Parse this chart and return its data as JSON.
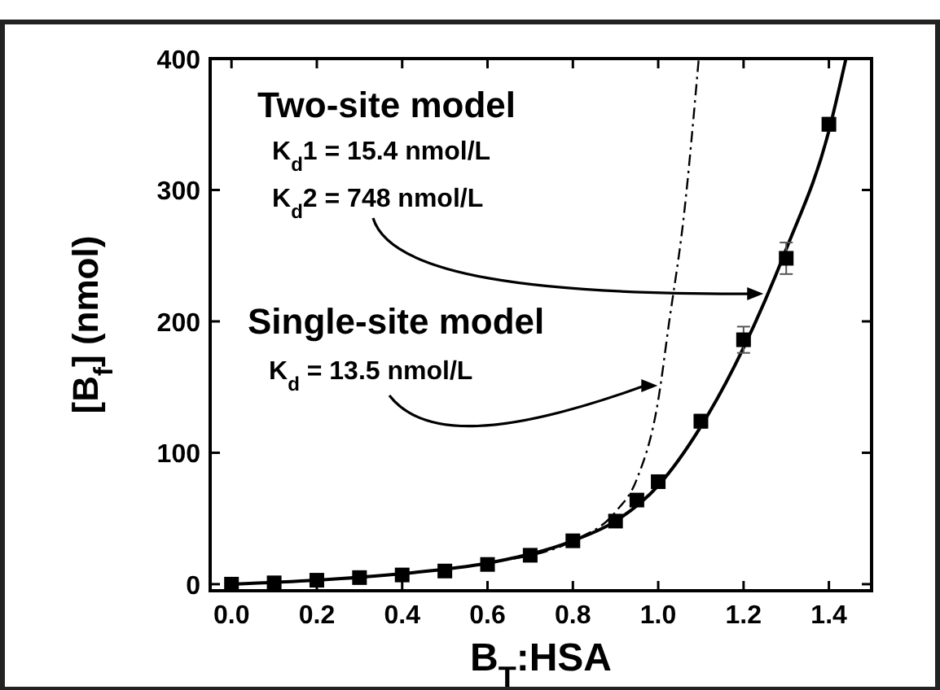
{
  "chart_data": {
    "type": "scatter",
    "xlabel": "B$_{T}$:HSA",
    "ylabel": "[B$_{f}$] (nmol)",
    "xlim": [
      -0.05,
      1.5
    ],
    "ylim": [
      -5,
      400
    ],
    "xticks": [
      {
        "value": 0,
        "label": "0.0"
      },
      {
        "value": 0.2,
        "label": "0.2"
      },
      {
        "value": 0.4,
        "label": "0.4"
      },
      {
        "value": 0.6,
        "label": "0.6"
      },
      {
        "value": 0.8,
        "label": "0.8"
      },
      {
        "value": 1,
        "label": "1.0"
      },
      {
        "value": 1.2,
        "label": "1.2"
      },
      {
        "value": 1.4,
        "label": "1.4"
      }
    ],
    "yticks": [
      0,
      100,
      200,
      300,
      400
    ],
    "grid": false,
    "series": [
      {
        "type": "line",
        "color": "#000000",
        "line_style": "dashed",
        "x": [
          0,
          0.2,
          0.4,
          0.6,
          0.8,
          0.9,
          0.95,
          1.0,
          1.025,
          1.06,
          1.095
        ],
        "values": [
          0,
          3,
          8,
          16,
          33,
          55,
          80,
          140,
          198,
          280,
          400
        ]
      },
      {
        "type": "line",
        "color": "#000000",
        "line_style": "solid",
        "x": [
          0,
          0.2,
          0.4,
          0.6,
          0.8,
          0.9,
          1.0,
          1.1,
          1.2,
          1.3,
          1.4,
          1.44
        ],
        "values": [
          0,
          3,
          8,
          16,
          33,
          48,
          75,
          120,
          180,
          255,
          345,
          400
        ]
      },
      {
        "color": "#000000",
        "marker": "square",
        "x": [
          0,
          0.1,
          0.2,
          0.3,
          0.4,
          0.5,
          0.6,
          0.7,
          0.8,
          0.9,
          0.95,
          1.0,
          1.1,
          1.2,
          1.3,
          1.4
        ],
        "values": [
          0,
          1,
          3,
          5,
          7,
          10,
          15,
          22,
          33,
          48,
          64,
          78,
          124,
          186,
          248,
          350
        ],
        "errors": [
          null,
          null,
          null,
          null,
          null,
          null,
          null,
          null,
          null,
          null,
          null,
          null,
          5,
          10,
          12,
          5
        ]
      }
    ],
    "annotations": [
      "Two-site model",
      "K$_{d}$1 = 15.4 nmol/L",
      "K$_{d}$2 = 748 nmol/L",
      "Single-site model",
      "K$_{d}$ = 13.5 nmol/L"
    ]
  }
}
